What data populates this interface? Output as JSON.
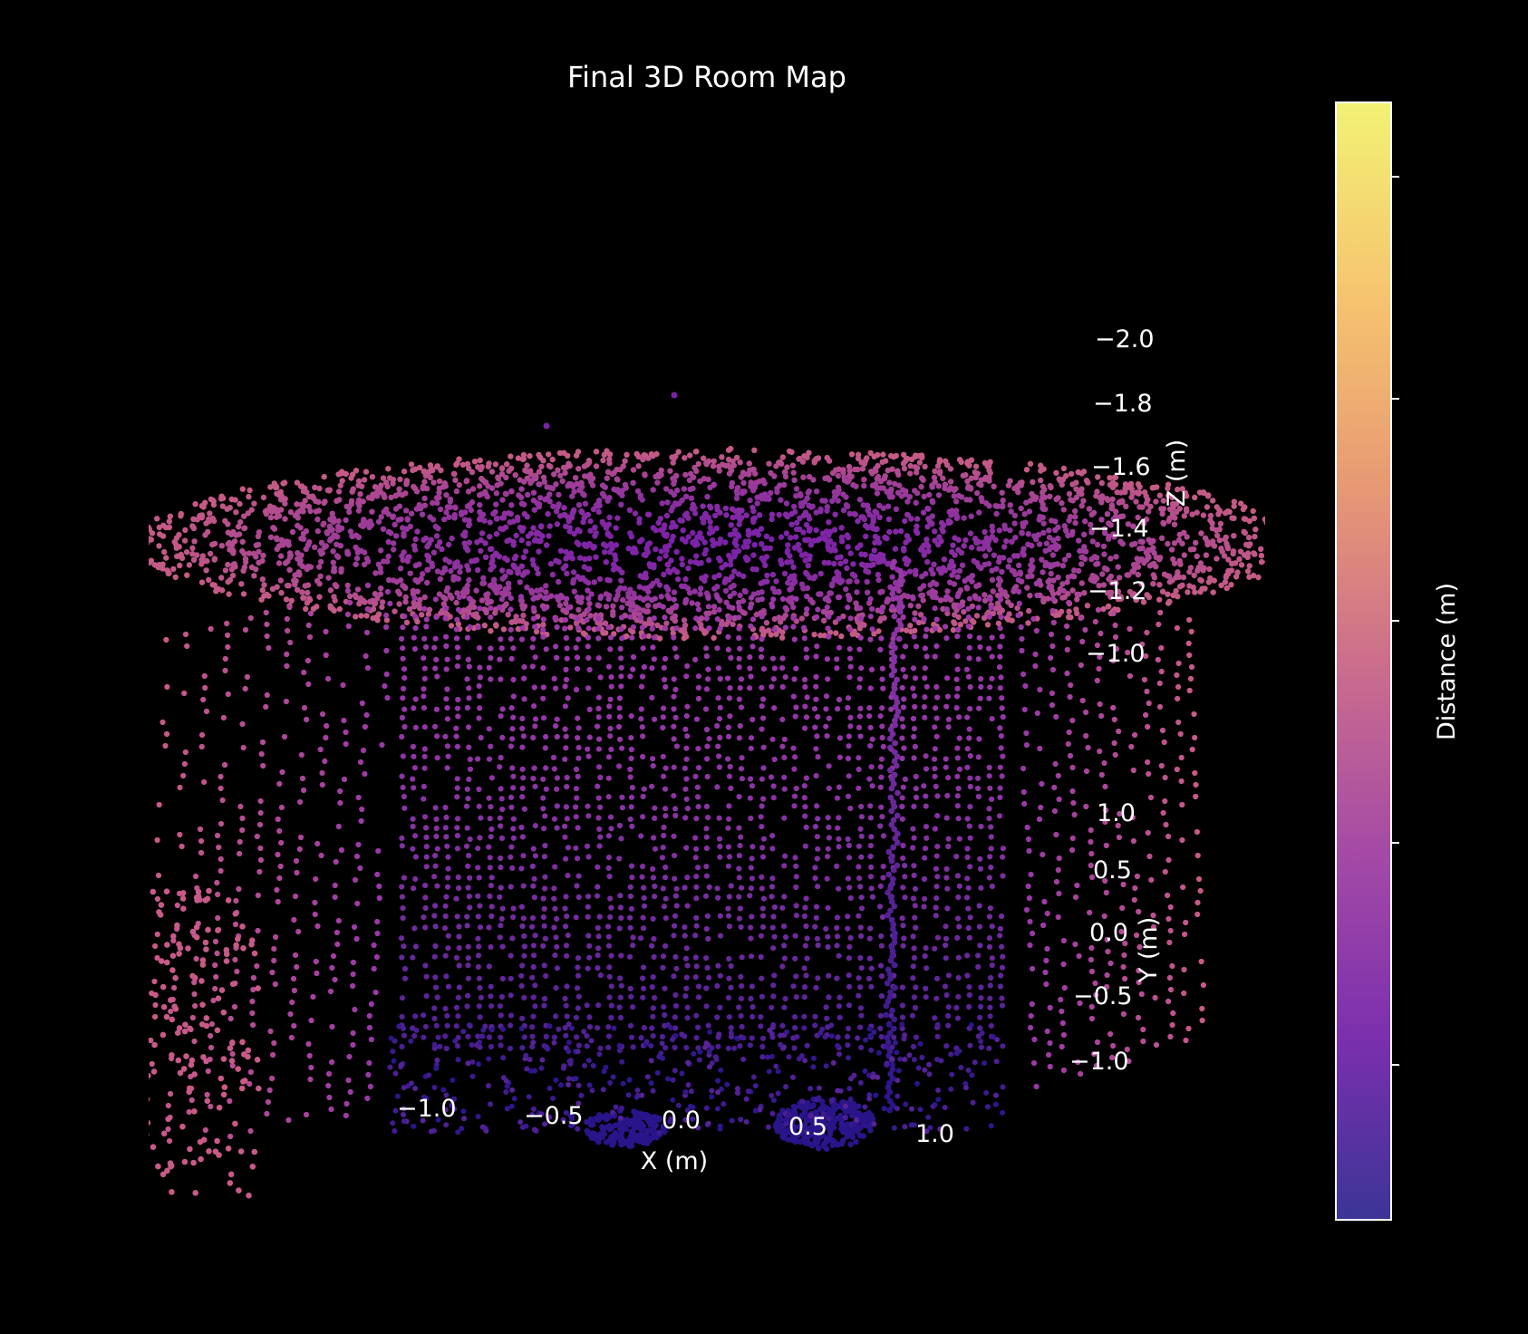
{
  "chart_data": {
    "type": "scatter",
    "projection": "3d",
    "title": "Final 3D Room Map",
    "xlabel": "X (m)",
    "ylabel": "Y (m)",
    "zlabel": "Z (m)",
    "x_ticks": [
      "−1.0",
      "−0.5",
      "0.0",
      "0.5",
      "1.0"
    ],
    "y_ticks": [
      "1.0",
      "0.5",
      "0.0",
      "−0.5",
      "−1.0"
    ],
    "z_ticks": [
      "−2.0",
      "−1.8",
      "−1.6",
      "−1.4",
      "−1.2",
      "−1.0"
    ],
    "xlim": [
      -1.25,
      1.25
    ],
    "ylim": [
      -1.25,
      1.25
    ],
    "zlim": [
      -2.1,
      -0.9
    ],
    "colorbar": {
      "label": "Distance (m)",
      "colormap": "plasma",
      "colors": [
        "#3b3596",
        "#7a2fad",
        "#a54aa6",
        "#cc6e8c",
        "#e89a73",
        "#f6c56f",
        "#f2f274"
      ],
      "tick_count": 5
    },
    "point_colors": {
      "ceiling_center": "#7b22a8",
      "ceiling_edge": "#c45a86",
      "wall": "#9a38a8",
      "floor": "#2a148a",
      "outer": "#c85a88"
    },
    "grid": false,
    "background": "#000000"
  }
}
